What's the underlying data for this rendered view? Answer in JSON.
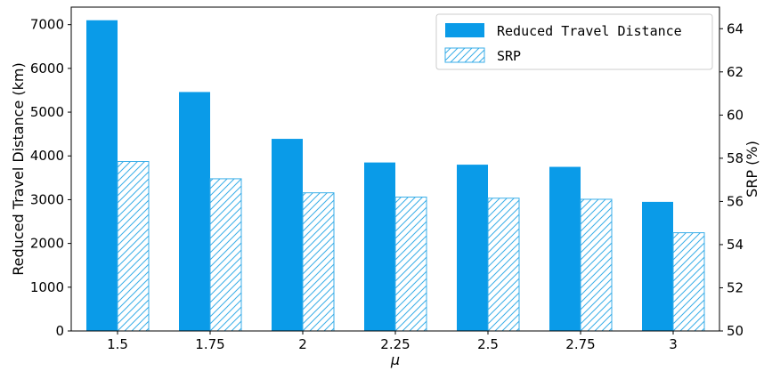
{
  "chart_data": {
    "type": "bar",
    "categories": [
      "1.5",
      "1.75",
      "2",
      "2.25",
      "2.5",
      "2.75",
      "3"
    ],
    "xlabel": "μ",
    "ylabel_left": "Reduced Travel Distance (km)",
    "ylabel_right": "SRP (%)",
    "ylim_left": [
      0,
      7400
    ],
    "ylim_right": [
      50,
      65
    ],
    "yticks_left": [
      "0",
      "1000",
      "2000",
      "3000",
      "4000",
      "5000",
      "6000",
      "7000"
    ],
    "yticks_right": [
      "50",
      "52",
      "54",
      "56",
      "58",
      "60",
      "62",
      "64"
    ],
    "legend_position": "top-right",
    "grid": false,
    "series": [
      {
        "name": "Reduced Travel Distance",
        "axis": "left",
        "style": "solid",
        "color": "#0a9be8",
        "values": [
          7100,
          5460,
          4390,
          3850,
          3800,
          3750,
          2950
        ]
      },
      {
        "name": "SRP",
        "axis": "right",
        "style": "hatched",
        "color": "#3aaee8",
        "values": [
          57.85,
          57.05,
          56.4,
          56.2,
          56.15,
          56.1,
          54.55
        ]
      }
    ]
  }
}
